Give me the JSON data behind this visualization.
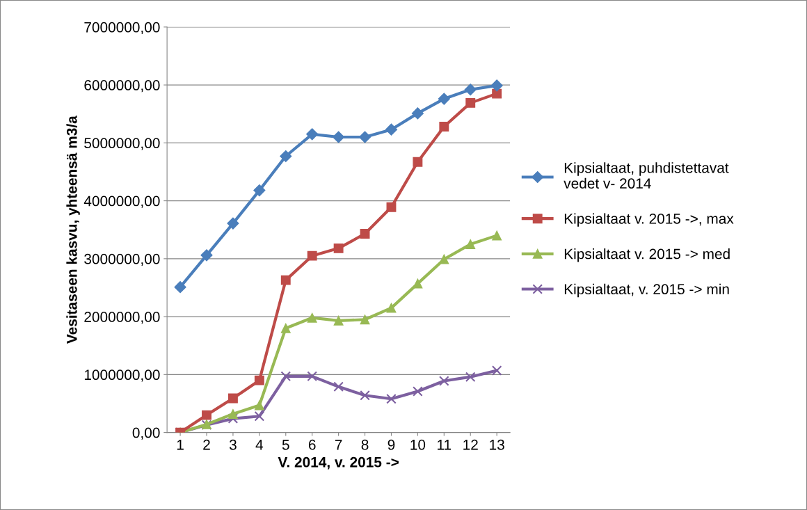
{
  "chart_data": {
    "type": "line",
    "xlabel": "V. 2014, v. 2015 ->",
    "ylabel": "Vesitaseen kasvu, yhteensä m3/a",
    "categories": [
      "1",
      "2",
      "3",
      "4",
      "5",
      "6",
      "7",
      "8",
      "9",
      "10",
      "11",
      "12",
      "13"
    ],
    "series": [
      {
        "name": "Kipsialtaat, puhdistettavat\nvedet v- 2014",
        "color": "#4a7ebb",
        "marker": "diamond",
        "values": [
          2510000,
          3060000,
          3610000,
          4180000,
          4770000,
          5150000,
          5100000,
          5100000,
          5230000,
          5510000,
          5760000,
          5920000,
          5990000
        ]
      },
      {
        "name": "Kipsialtaat v. 2015 ->, max",
        "color": "#be4b48",
        "marker": "square",
        "values": [
          0,
          300000,
          590000,
          900000,
          2630000,
          3050000,
          3180000,
          3430000,
          3890000,
          4670000,
          5280000,
          5690000,
          5850000
        ]
      },
      {
        "name": "Kipsialtaat v. 2015 -> med",
        "color": "#98b954",
        "marker": "triangle",
        "values": [
          0,
          140000,
          320000,
          470000,
          1800000,
          1980000,
          1930000,
          1950000,
          2150000,
          2570000,
          2990000,
          3250000,
          3400000
        ]
      },
      {
        "name": "Kipsialtaat, v. 2015 -> min",
        "color": "#7d60a0",
        "marker": "cross",
        "values": [
          0,
          130000,
          240000,
          280000,
          970000,
          970000,
          790000,
          640000,
          580000,
          710000,
          890000,
          960000,
          1070000
        ]
      }
    ],
    "ylim": [
      0,
      7000000
    ],
    "yticks": [
      {
        "value": 0,
        "label": "0,00"
      },
      {
        "value": 1000000,
        "label": "1000000,00"
      },
      {
        "value": 2000000,
        "label": "2000000,00"
      },
      {
        "value": 3000000,
        "label": "3000000,00"
      },
      {
        "value": 4000000,
        "label": "4000000,00"
      },
      {
        "value": 5000000,
        "label": "5000000,00"
      },
      {
        "value": 6000000,
        "label": "6000000,00"
      },
      {
        "value": 7000000,
        "label": "7000000,00"
      }
    ],
    "grid": "y",
    "legend": "right",
    "line_style": "solid"
  }
}
